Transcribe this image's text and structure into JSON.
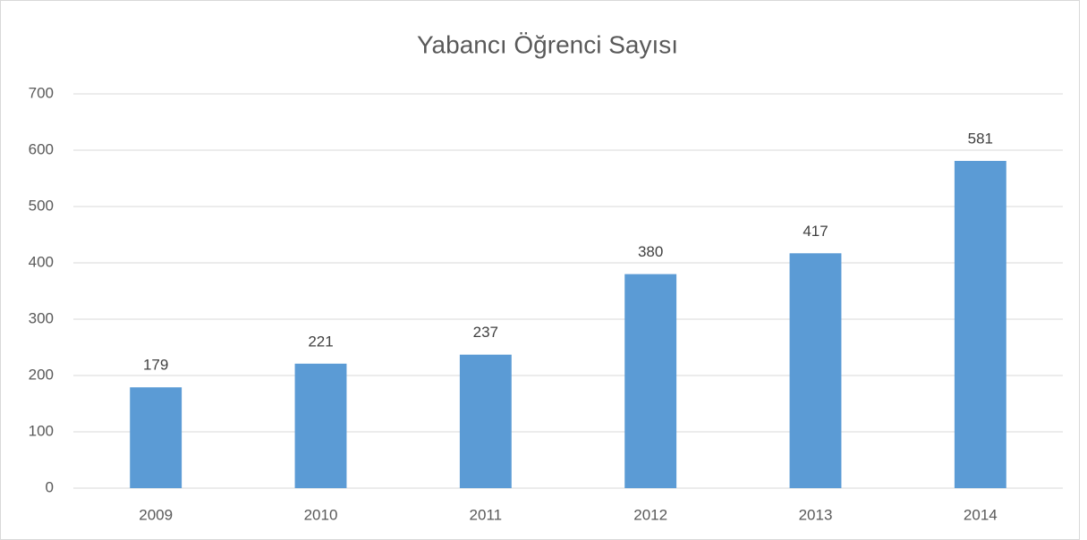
{
  "chart_data": {
    "type": "bar",
    "title": "Yabancı Öğrenci Sayısı",
    "categories": [
      "2009",
      "2010",
      "2011",
      "2012",
      "2013",
      "2014"
    ],
    "values": [
      179,
      221,
      237,
      380,
      417,
      581
    ],
    "color": "#5b9bd5",
    "ylim": [
      0,
      700
    ],
    "yticks": [
      0,
      100,
      200,
      300,
      400,
      500,
      600,
      700
    ],
    "grid": true
  }
}
